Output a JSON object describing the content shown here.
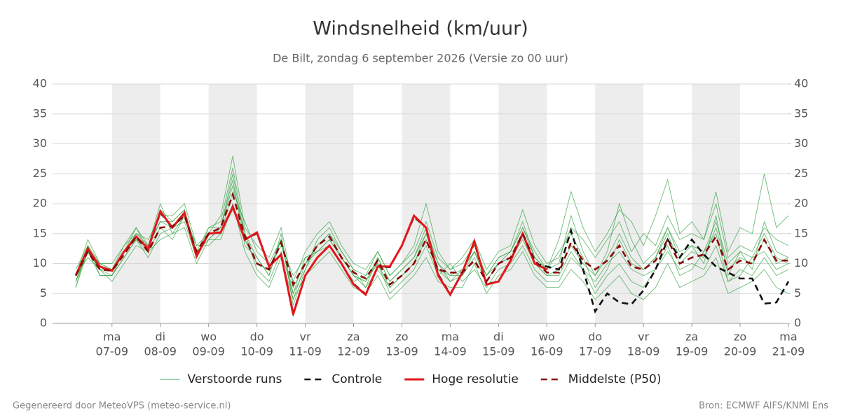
{
  "chart_data": {
    "type": "line",
    "title": "Windsnelheid (km/uur)",
    "subtitle": "De Bilt, zondag  6 september 2026 (Versie zo 00 uur)",
    "footer_left": "Gegenereerd door MeteoVPS (meteo-service.nl)",
    "footer_right": "Bron: ECMWF AIFS/KNMI Ens",
    "x": [
      6.25,
      6.5,
      6.75,
      7,
      7.25,
      7.5,
      7.75,
      8,
      8.25,
      8.5,
      8.75,
      9,
      9.25,
      9.5,
      9.75,
      10,
      10.25,
      10.5,
      10.75,
      11,
      11.25,
      11.5,
      11.75,
      12,
      12.25,
      12.5,
      12.75,
      13,
      13.25,
      13.5,
      13.75,
      14,
      14.25,
      14.5,
      14.75,
      15,
      15.25,
      15.5,
      15.75,
      16,
      16.25,
      16.5,
      16.75,
      17,
      17.25,
      17.5,
      17.75,
      18,
      18.25,
      18.5,
      18.75,
      19,
      19.25,
      19.5,
      19.75,
      20,
      20.25,
      20.5,
      20.75,
      21
    ],
    "xlim": [
      5.77,
      21
    ],
    "xticks": [
      {
        "value": 7,
        "label": "ma",
        "sublabel": "07-09"
      },
      {
        "value": 8,
        "label": "di",
        "sublabel": "08-09"
      },
      {
        "value": 9,
        "label": "wo",
        "sublabel": "09-09"
      },
      {
        "value": 10,
        "label": "do",
        "sublabel": "10-09"
      },
      {
        "value": 11,
        "label": "vr",
        "sublabel": "11-09"
      },
      {
        "value": 12,
        "label": "za",
        "sublabel": "12-09"
      },
      {
        "value": 13,
        "label": "zo",
        "sublabel": "13-09"
      },
      {
        "value": 14,
        "label": "ma",
        "sublabel": "14-09"
      },
      {
        "value": 15,
        "label": "di",
        "sublabel": "15-09"
      },
      {
        "value": 16,
        "label": "wo",
        "sublabel": "16-09"
      },
      {
        "value": 17,
        "label": "do",
        "sublabel": "17-09"
      },
      {
        "value": 18,
        "label": "vr",
        "sublabel": "18-09"
      },
      {
        "value": 19,
        "label": "za",
        "sublabel": "19-09"
      },
      {
        "value": 20,
        "label": "zo",
        "sublabel": "20-09"
      },
      {
        "value": 21,
        "label": "ma",
        "sublabel": "21-09"
      }
    ],
    "ylim": [
      0,
      40
    ],
    "yticks": [
      0,
      5,
      10,
      15,
      20,
      25,
      30,
      35,
      40
    ],
    "y2lim": [
      0,
      40
    ],
    "y2ticks": [
      0,
      5,
      10,
      15,
      20,
      25,
      30,
      35,
      40
    ],
    "grid": true,
    "series": [
      {
        "name": "Verstoorde runs",
        "color": "#2ca03c",
        "ensemble": true,
        "values": [
          [
            7,
            13,
            10,
            9,
            13,
            15,
            13,
            17,
            17,
            19,
            12,
            14,
            16,
            24,
            13,
            11,
            8,
            15,
            3,
            9,
            14,
            16,
            12,
            9,
            6,
            11,
            7,
            9,
            11,
            15,
            10,
            7,
            9,
            12,
            8,
            11,
            12,
            17,
            11,
            9,
            10,
            18,
            12,
            8,
            12,
            20,
            14,
            10,
            12,
            16,
            11,
            13,
            10,
            18,
            8,
            12,
            9,
            17,
            12,
            11
          ],
          [
            6,
            12,
            8,
            8,
            11,
            14,
            11,
            15,
            16,
            17,
            11,
            16,
            17,
            26,
            15,
            9,
            7,
            12,
            5,
            11,
            12,
            13,
            10,
            7,
            8,
            10,
            5,
            7,
            9,
            13,
            8,
            10,
            7,
            9,
            6,
            9,
            10,
            13,
            9,
            7,
            7,
            11,
            9,
            5,
            8,
            10,
            7,
            6,
            9,
            13,
            8,
            9,
            12,
            15,
            7,
            8,
            11,
            12,
            9,
            10
          ],
          [
            9,
            13,
            9,
            9,
            12,
            16,
            13,
            20,
            15,
            18,
            13,
            13,
            15,
            22,
            17,
            12,
            10,
            14,
            7,
            12,
            15,
            17,
            13,
            10,
            9,
            12,
            8,
            10,
            13,
            20,
            12,
            9,
            11,
            14,
            9,
            12,
            13,
            19,
            13,
            10,
            11,
            16,
            14,
            11,
            14,
            17,
            12,
            15,
            13,
            18,
            14,
            15,
            14,
            20,
            11,
            13,
            12,
            16,
            14,
            13
          ],
          [
            8,
            11,
            9,
            7,
            10,
            13,
            12,
            14,
            15,
            16,
            10,
            14,
            14,
            20,
            12,
            8,
            6,
            11,
            4,
            8,
            10,
            12,
            9,
            6,
            5,
            8,
            4,
            6,
            8,
            11,
            7,
            6,
            6,
            10,
            5,
            8,
            9,
            12,
            8,
            6,
            6,
            9,
            7,
            4,
            6,
            8,
            5,
            4,
            6,
            10,
            6,
            7,
            8,
            11,
            5,
            6,
            7,
            9,
            6,
            5
          ],
          [
            7,
            12,
            10,
            9,
            12,
            15,
            14,
            18,
            18,
            20,
            13,
            15,
            18,
            28,
            16,
            13,
            11,
            16,
            6,
            10,
            13,
            15,
            12,
            9,
            8,
            12,
            8,
            10,
            12,
            17,
            11,
            9,
            10,
            13,
            8,
            11,
            12,
            16,
            12,
            9,
            14,
            22,
            16,
            12,
            15,
            19,
            17,
            13,
            18,
            24,
            15,
            17,
            14,
            22,
            12,
            16,
            15,
            25,
            16,
            18
          ],
          [
            6,
            13,
            8,
            8,
            12,
            14,
            12,
            16,
            14,
            18,
            11,
            15,
            15,
            19,
            14,
            10,
            9,
            13,
            8,
            11,
            12,
            14,
            11,
            8,
            6,
            9,
            6,
            8,
            10,
            14,
            9,
            7,
            8,
            11,
            7,
            10,
            11,
            14,
            10,
            8,
            8,
            12,
            9,
            7,
            10,
            12,
            9,
            8,
            9,
            12,
            9,
            10,
            9,
            13,
            7,
            9,
            8,
            11,
            8,
            9
          ],
          [
            8,
            14,
            10,
            10,
            13,
            16,
            12,
            19,
            17,
            19,
            12,
            16,
            16,
            23,
            15,
            11,
            8,
            14,
            5,
            9,
            13,
            15,
            11,
            8,
            7,
            11,
            7,
            9,
            11,
            16,
            10,
            8,
            9,
            12,
            8,
            10,
            12,
            16,
            11,
            9,
            12,
            15,
            11,
            6,
            9,
            14,
            10,
            9,
            11,
            15,
            10,
            12,
            11,
            16,
            9,
            11,
            10,
            14,
            10,
            11
          ],
          [
            7,
            12,
            9,
            8,
            11,
            14,
            13,
            17,
            16,
            18,
            12,
            14,
            16,
            25,
            14,
            10,
            9,
            14,
            4,
            10,
            12,
            14,
            11,
            8,
            7,
            10,
            6,
            8,
            10,
            15,
            9,
            8,
            8,
            12,
            7,
            10,
            11,
            15,
            10,
            8,
            9,
            13,
            10,
            8,
            11,
            15,
            11,
            9,
            11,
            16,
            12,
            13,
            12,
            17,
            10,
            12,
            11,
            15,
            11,
            10
          ]
        ]
      },
      {
        "name": "Controle",
        "color": "#111111",
        "dash": true,
        "values": [
          8,
          12.3,
          9.4,
          8.8,
          12,
          14.4,
          12.5,
          18.5,
          16,
          18.4,
          11.3,
          15,
          15.2,
          19.5,
          14.2,
          15,
          9.6,
          11.5,
          1.7,
          8,
          11,
          13,
          10,
          6.6,
          4.9,
          9.5,
          9.4,
          13,
          17.8,
          16,
          8.2,
          4.9,
          8.5,
          13.5,
          6.6,
          7,
          10.5,
          15,
          10,
          9.5,
          9,
          15.5,
          9,
          2,
          5,
          3.5,
          3.2,
          5.5,
          9,
          14,
          11,
          14,
          11.5,
          9.5,
          8.5,
          7.5,
          7.5,
          3.3,
          3.5,
          7
        ]
      },
      {
        "name": "Hoge resolutie",
        "color": "#e3171b",
        "values": [
          8,
          12.5,
          9.5,
          8.8,
          12,
          14.5,
          12.5,
          18.7,
          16,
          18.5,
          11.2,
          15,
          15.2,
          19.5,
          14,
          15.2,
          9.5,
          11.5,
          1.5,
          8,
          11,
          13,
          10,
          6.5,
          4.8,
          9.5,
          9.5,
          13,
          18,
          16,
          8,
          4.8,
          8.5,
          13.7,
          6.5,
          7,
          10.5,
          15,
          10,
          9,
          null,
          null,
          null,
          null,
          null,
          null,
          null,
          null,
          null,
          null,
          null,
          null,
          null,
          null,
          null,
          null,
          null,
          null,
          null,
          null
        ]
      },
      {
        "name": "Middelste (P50)",
        "color": "#8b0a0a",
        "dash": true,
        "values": [
          8,
          12,
          9,
          8.8,
          11.5,
          14.5,
          12,
          16,
          16.2,
          18,
          12,
          15,
          16,
          21.5,
          14.5,
          10,
          9,
          13.5,
          6.5,
          10,
          13,
          14.5,
          11,
          8.5,
          7.5,
          10.5,
          6.5,
          8,
          10,
          14,
          9,
          8.5,
          8.5,
          10.5,
          7,
          10,
          11,
          15,
          10.5,
          8.5,
          8.5,
          13.5,
          10.5,
          9,
          10.5,
          13,
          9.5,
          9,
          10.5,
          14,
          10,
          11,
          11.5,
          14.5,
          9,
          10.5,
          10,
          14,
          10.5,
          10.5
        ]
      }
    ]
  }
}
